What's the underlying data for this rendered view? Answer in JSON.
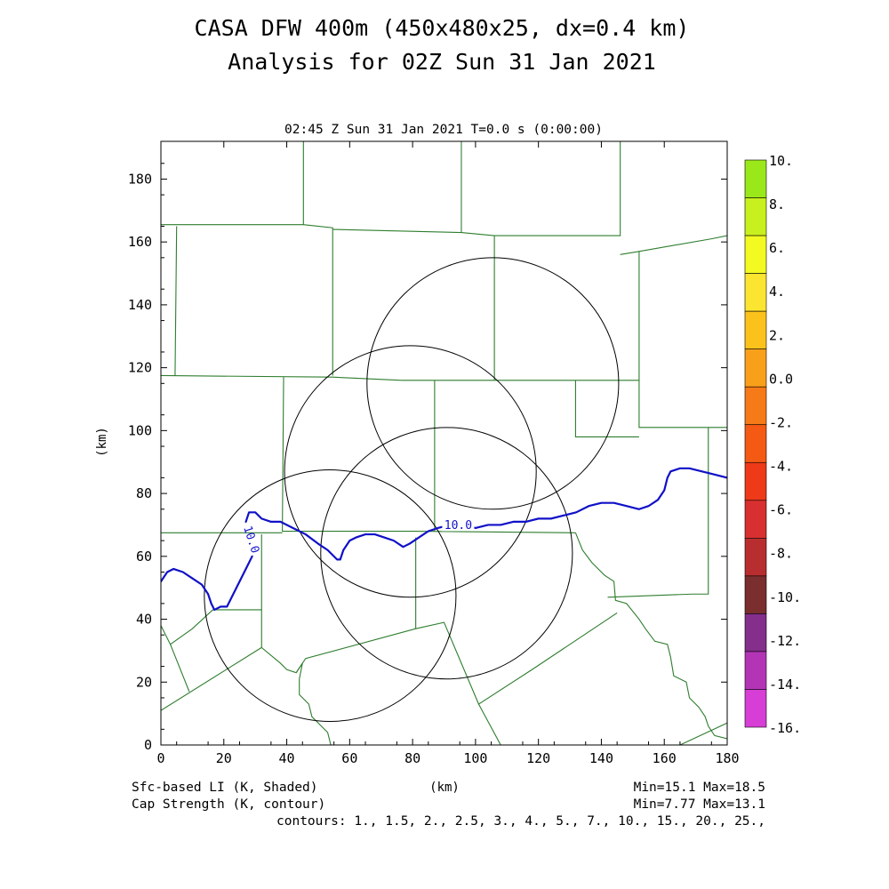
{
  "header": {
    "title_line1": "CASA DFW 400m (450x480x25, dx=0.4 km)",
    "title_line2": "Analysis for 02Z Sun 31 Jan 2021",
    "subtitle": "02:45 Z Sun 31 Jan 2021   T=0.0 s (0:00:00)"
  },
  "footer": {
    "shaded_label": "Sfc-based LI (K, Shaded)",
    "contour_label": "Cap Strength (K, contour)",
    "xunit": "(km)",
    "shaded_range": "Min=15.1 Max=18.5",
    "contour_range": "Min=7.77 Max=13.1",
    "contours": "contours: 1., 1.5, 2., 2.5, 3., 4., 5., 7., 10., 15., 20., 25.,"
  },
  "chart_data": {
    "type": "contour",
    "xlabel": "(km)",
    "ylabel": "(km)",
    "xlim": [
      0,
      180
    ],
    "ylim": [
      0,
      192
    ],
    "x_ticks": [
      0,
      20,
      40,
      60,
      80,
      100,
      120,
      140,
      160,
      180
    ],
    "y_ticks": [
      0,
      20,
      40,
      60,
      80,
      100,
      120,
      140,
      160,
      180
    ],
    "colors": {
      "boundary": "#2e7d2e",
      "contour": "#1010c8",
      "radar_ring": "#000000"
    },
    "colorbar": {
      "labels": [
        "10.",
        "8.",
        "6.",
        "4.",
        "2.",
        "0.0",
        "-2.",
        "-4.",
        "-6.",
        "-8.",
        "-10.",
        "-12.",
        "-14.",
        "-16."
      ],
      "colors": [
        "#9be81a",
        "#c8f01e",
        "#f2fa22",
        "#fce530",
        "#fcc21c",
        "#f9a01a",
        "#f77a18",
        "#f45a14",
        "#ee3a18",
        "#d83030",
        "#b82e30",
        "#7a2e2e",
        "#842f8c",
        "#b335b6",
        "#d63ed6"
      ]
    },
    "radar_rings": [
      {
        "cx": 105.5,
        "cy": 115,
        "r": 40
      },
      {
        "cx": 79.3,
        "cy": 87,
        "r": 40
      },
      {
        "cx": 90.8,
        "cy": 61,
        "r": 40
      },
      {
        "cx": 53.8,
        "cy": 47.5,
        "r": 40
      }
    ],
    "contour_lines": [
      {
        "level": "10.0",
        "label": "10.0",
        "points": [
          [
            0,
            52
          ],
          [
            2,
            55
          ],
          [
            4,
            56
          ],
          [
            7,
            55
          ],
          [
            10,
            53
          ],
          [
            13,
            51
          ],
          [
            15,
            48
          ],
          [
            16,
            45
          ],
          [
            17,
            43
          ],
          [
            19,
            44
          ],
          [
            21,
            44
          ],
          [
            23,
            48
          ],
          [
            25,
            52
          ],
          [
            27,
            56
          ],
          [
            29,
            60
          ]
        ]
      },
      {
        "level": "10.0",
        "label": "10.0",
        "points": [
          [
            27,
            71
          ],
          [
            28,
            74
          ],
          [
            30,
            74
          ],
          [
            32,
            72
          ],
          [
            35,
            71
          ],
          [
            38,
            71
          ],
          [
            42,
            69
          ],
          [
            46,
            67
          ],
          [
            50,
            64
          ],
          [
            53,
            62
          ],
          [
            56,
            59
          ],
          [
            57,
            59
          ],
          [
            58,
            62
          ],
          [
            60,
            65
          ],
          [
            62,
            66
          ],
          [
            65,
            67
          ],
          [
            68,
            67
          ],
          [
            71,
            66
          ],
          [
            74,
            65
          ],
          [
            77,
            63
          ],
          [
            79,
            64
          ],
          [
            82,
            66
          ],
          [
            85,
            68
          ],
          [
            88,
            69
          ],
          [
            92,
            70
          ],
          [
            96,
            70
          ],
          [
            100,
            69
          ],
          [
            104,
            70
          ],
          [
            108,
            70
          ],
          [
            112,
            71
          ],
          [
            116,
            71
          ],
          [
            120,
            72
          ],
          [
            124,
            72
          ],
          [
            128,
            73
          ],
          [
            132,
            74
          ],
          [
            136,
            76
          ],
          [
            140,
            77
          ],
          [
            144,
            77
          ],
          [
            148,
            76
          ],
          [
            152,
            75
          ],
          [
            155,
            76
          ],
          [
            158,
            78
          ],
          [
            160,
            81
          ],
          [
            161,
            85
          ],
          [
            162,
            87
          ],
          [
            165,
            88
          ],
          [
            168,
            88
          ],
          [
            172,
            87
          ],
          [
            176,
            86
          ],
          [
            180,
            85
          ]
        ]
      }
    ],
    "boundaries": [
      [
        [
          0,
          165.5
        ],
        [
          45.3,
          165.5
        ],
        [
          45.3,
          192
        ]
      ],
      [
        [
          45.3,
          165.5
        ],
        [
          54.6,
          164.5
        ],
        [
          54.6,
          138
        ],
        [
          54.6,
          117.5
        ]
      ],
      [
        [
          0,
          117.5
        ],
        [
          54.6,
          117
        ],
        [
          76.5,
          116
        ]
      ],
      [
        [
          54.6,
          164
        ],
        [
          95.5,
          163
        ],
        [
          106,
          162
        ],
        [
          146,
          162
        ],
        [
          146,
          192
        ]
      ],
      [
        [
          95.5,
          163
        ],
        [
          95.5,
          192
        ]
      ],
      [
        [
          106,
          162
        ],
        [
          106,
          116
        ]
      ],
      [
        [
          5,
          165
        ],
        [
          4.5,
          117.5
        ]
      ],
      [
        [
          146,
          156
        ],
        [
          152,
          157
        ],
        [
          175,
          161
        ],
        [
          180,
          162
        ]
      ],
      [
        [
          152,
          157
        ],
        [
          152,
          116
        ]
      ],
      [
        [
          76.5,
          116
        ],
        [
          152,
          116
        ],
        [
          152,
          101
        ],
        [
          180,
          101
        ]
      ],
      [
        [
          39,
          117
        ],
        [
          38.6,
          68
        ],
        [
          80.8,
          68
        ],
        [
          131.8,
          67.5
        ]
      ],
      [
        [
          87,
          116
        ],
        [
          87,
          68
        ]
      ],
      [
        [
          131.8,
          116
        ],
        [
          131.8,
          98
        ],
        [
          152,
          98
        ]
      ],
      [
        [
          0,
          67.5
        ],
        [
          38.6,
          67.5
        ]
      ],
      [
        [
          131.8,
          67.5
        ],
        [
          134,
          62
        ],
        [
          137,
          58
        ],
        [
          141,
          54
        ],
        [
          144,
          52
        ],
        [
          144.5,
          46
        ],
        [
          148,
          45
        ],
        [
          152,
          40
        ],
        [
          154,
          37
        ],
        [
          157,
          33
        ],
        [
          161,
          32
        ],
        [
          162,
          28
        ],
        [
          163,
          22
        ],
        [
          167,
          20
        ],
        [
          168,
          15
        ],
        [
          171,
          12
        ],
        [
          173,
          9
        ],
        [
          174,
          6
        ],
        [
          176,
          3
        ],
        [
          180,
          2
        ]
      ],
      [
        [
          142,
          47
        ],
        [
          169,
          48
        ],
        [
          174,
          48
        ],
        [
          174,
          101
        ]
      ],
      [
        [
          145,
          42
        ],
        [
          118,
          24
        ],
        [
          101,
          13
        ],
        [
          90,
          39
        ],
        [
          81,
          37
        ]
      ],
      [
        [
          81,
          66
        ],
        [
          81,
          37
        ],
        [
          46,
          27.5
        ],
        [
          43,
          23
        ]
      ],
      [
        [
          32,
          67
        ],
        [
          32,
          43
        ],
        [
          16.5,
          43
        ],
        [
          10,
          37
        ],
        [
          3,
          32
        ],
        [
          0,
          38
        ]
      ],
      [
        [
          32,
          43
        ],
        [
          32,
          31
        ],
        [
          38,
          26
        ],
        [
          40,
          24
        ],
        [
          43,
          23
        ],
        [
          45,
          26
        ],
        [
          44,
          21
        ],
        [
          44,
          16
        ],
        [
          47,
          13
        ],
        [
          48,
          9
        ],
        [
          50,
          7
        ],
        [
          53,
          4
        ],
        [
          54,
          0
        ]
      ],
      [
        [
          32,
          31
        ],
        [
          0,
          11
        ]
      ],
      [
        [
          3,
          32
        ],
        [
          9,
          17
        ]
      ],
      [
        [
          101,
          13
        ],
        [
          108,
          0
        ]
      ],
      [
        [
          165,
          0
        ],
        [
          180,
          7
        ]
      ]
    ]
  }
}
